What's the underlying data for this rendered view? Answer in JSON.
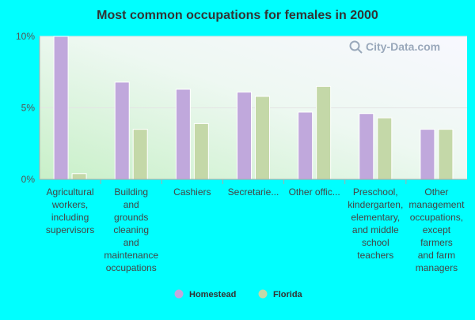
{
  "chart_data": {
    "type": "bar",
    "title": "Most common occupations for females in 2000",
    "xlabel": "",
    "ylabel": "",
    "ylim": [
      0,
      10
    ],
    "yticks": [
      {
        "value": 0,
        "label": "0%"
      },
      {
        "value": 5,
        "label": "5%"
      },
      {
        "value": 10,
        "label": "10%"
      }
    ],
    "categories": [
      [
        "Agricultural",
        "workers,",
        "including",
        "supervisors"
      ],
      [
        "Building",
        "and",
        "grounds",
        "cleaning",
        "and",
        "maintenance",
        "occupations"
      ],
      [
        "Cashiers"
      ],
      [
        "Secretarie..."
      ],
      [
        "Other offic..."
      ],
      [
        "Preschool,",
        "kindergarten,",
        "elementary,",
        "and middle",
        "school",
        "teachers"
      ],
      [
        "Other",
        "management",
        "occupations,",
        "except",
        "farmers",
        "and farm",
        "managers"
      ]
    ],
    "series": [
      {
        "name": "Homestead",
        "color": "#c0a8dc",
        "values": [
          10.0,
          6.8,
          6.3,
          6.1,
          4.7,
          4.6,
          3.5
        ]
      },
      {
        "name": "Florida",
        "color": "#c4d8a8",
        "values": [
          0.4,
          3.5,
          3.9,
          5.8,
          6.5,
          4.3,
          3.5
        ]
      }
    ],
    "grid": true,
    "legend_position": "bottom"
  },
  "watermark": {
    "text": "City-Data.com",
    "icon": "magnifier-icon"
  }
}
